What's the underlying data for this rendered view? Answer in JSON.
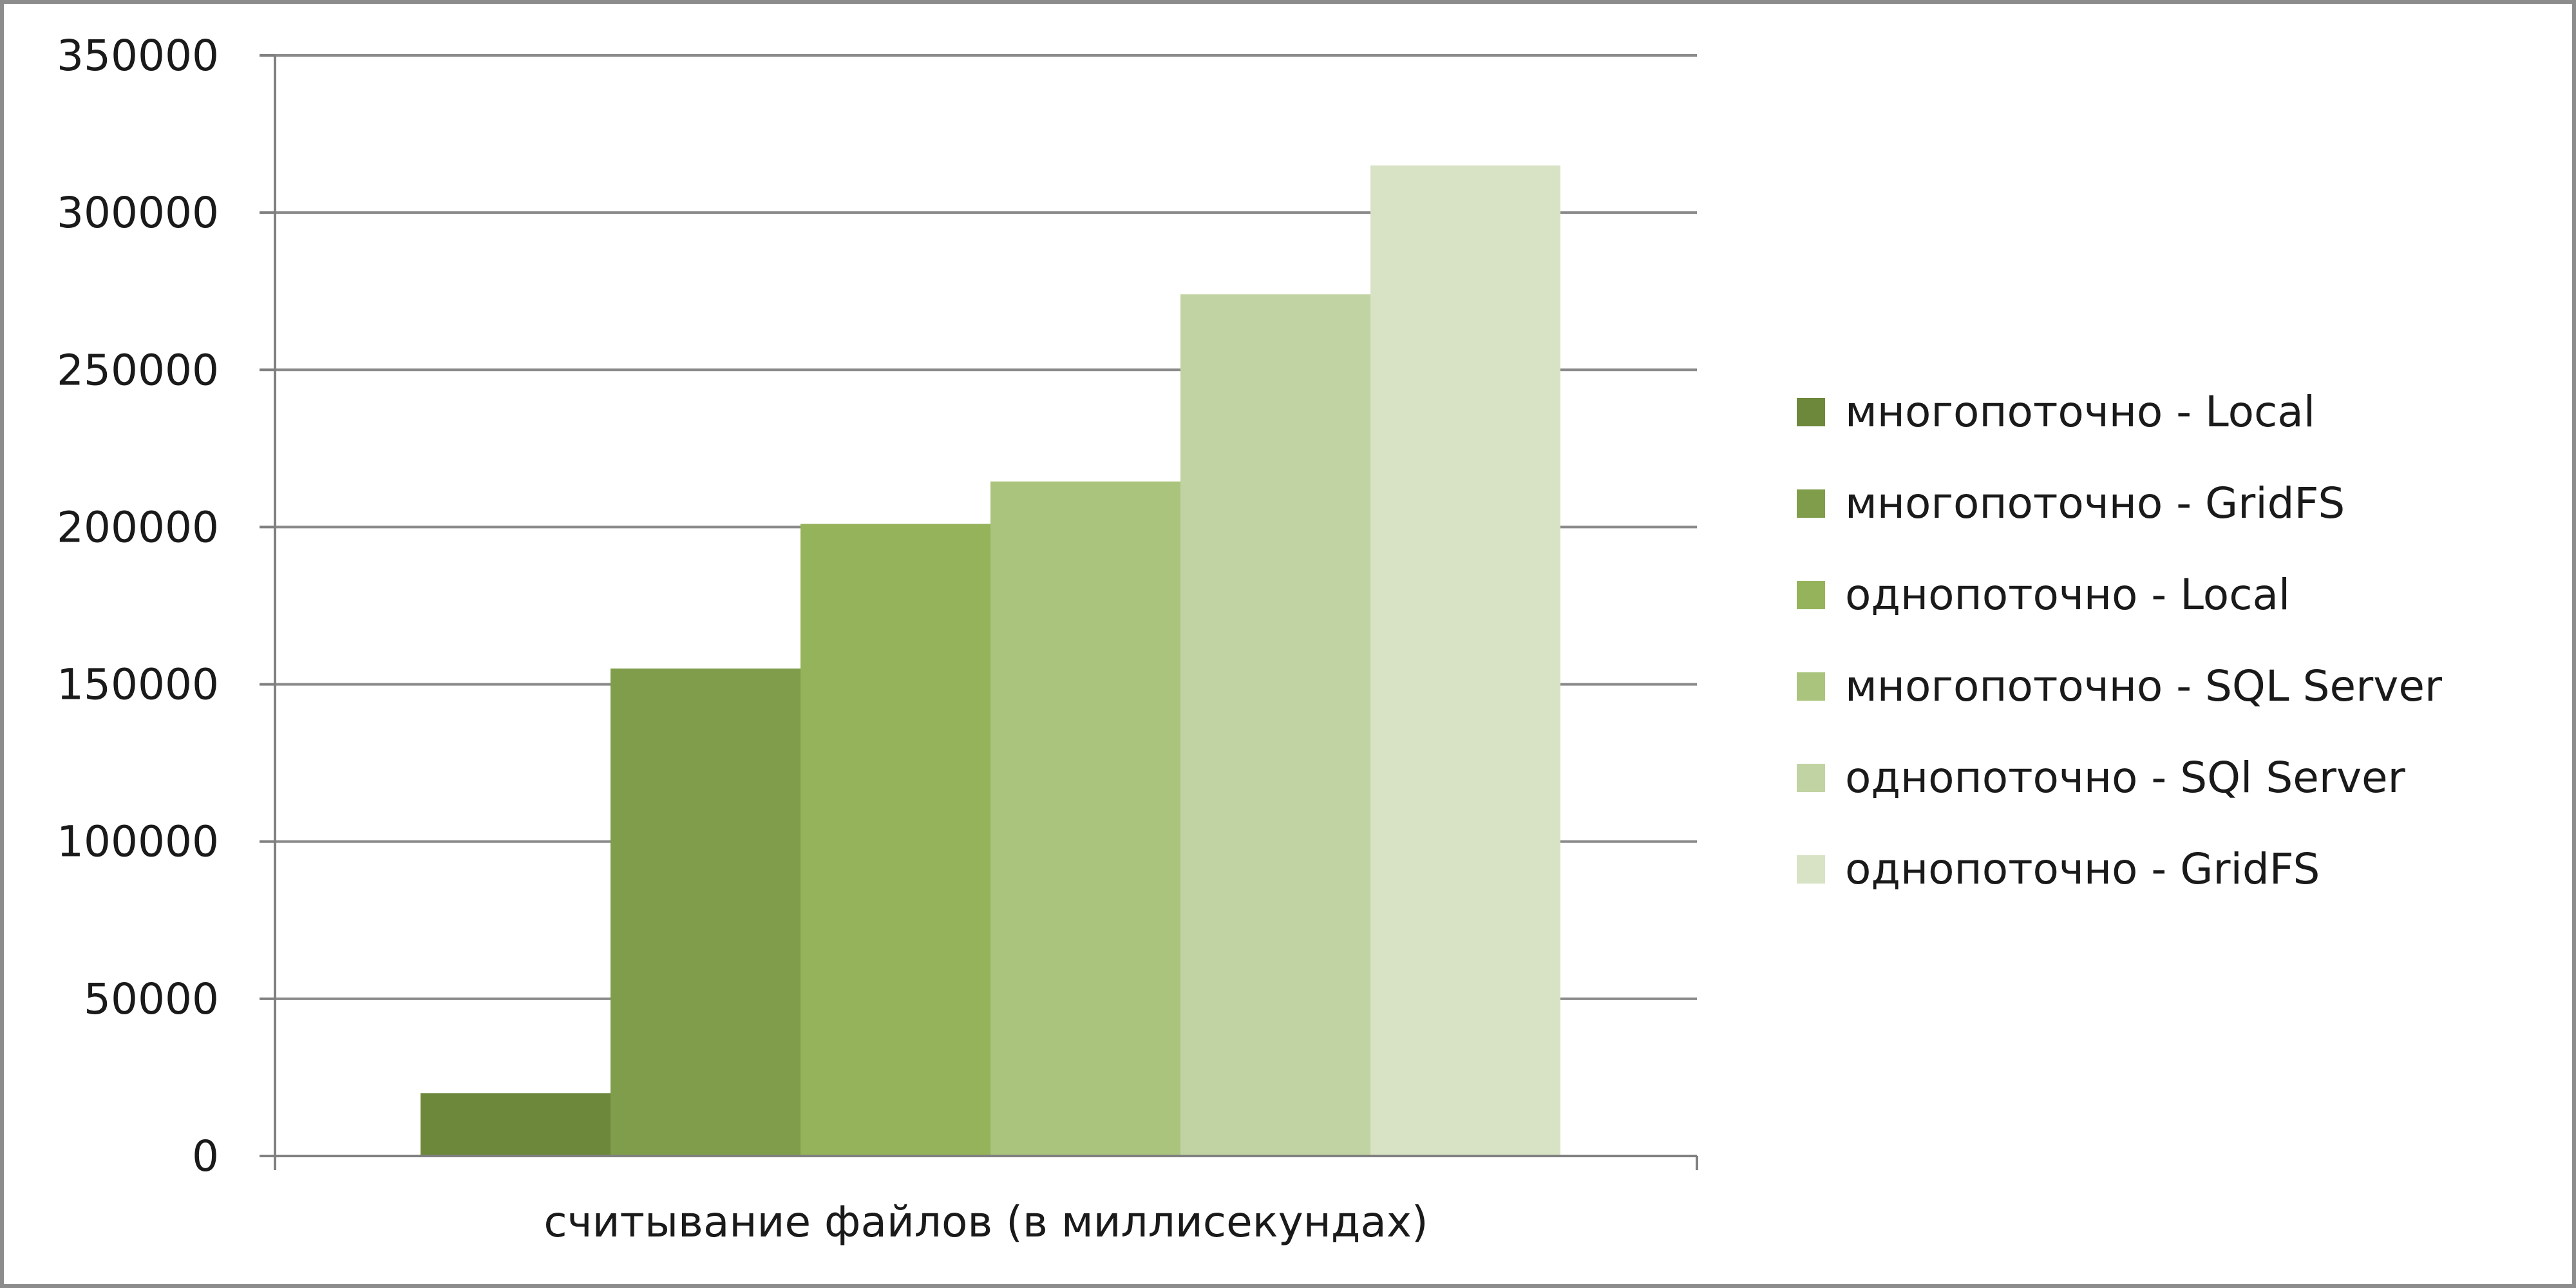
{
  "chart_data": {
    "type": "bar",
    "categories": [
      "считывание файлов (в миллисекундах)"
    ],
    "xlabel": "считывание файлов (в миллисекундах)",
    "ylabel": "",
    "title": "",
    "ylim": [
      0,
      350000
    ],
    "yticks": [
      "0",
      "50000",
      "100000",
      "150000",
      "200000",
      "250000",
      "300000",
      "350000"
    ],
    "ytick_values": [
      0,
      50000,
      100000,
      150000,
      200000,
      250000,
      300000,
      350000
    ],
    "grid": true,
    "legend_position": "right",
    "series": [
      {
        "name": "многопоточно - Local",
        "values": [
          20000
        ],
        "color": "#6e883b"
      },
      {
        "name": "многопоточно - GridFS",
        "values": [
          155000
        ],
        "color": "#7f9d4a"
      },
      {
        "name": "однопоточно - Local",
        "values": [
          201000
        ],
        "color": "#95b35a"
      },
      {
        "name": "многопоточно - SQL Server",
        "values": [
          214500
        ],
        "color": "#aac47d"
      },
      {
        "name": "однопоточно - SQl Server",
        "values": [
          274000
        ],
        "color": "#c1d3a2"
      },
      {
        "name": "однопоточно - GridFS",
        "values": [
          315000
        ],
        "color": "#d7e3c4"
      }
    ]
  }
}
